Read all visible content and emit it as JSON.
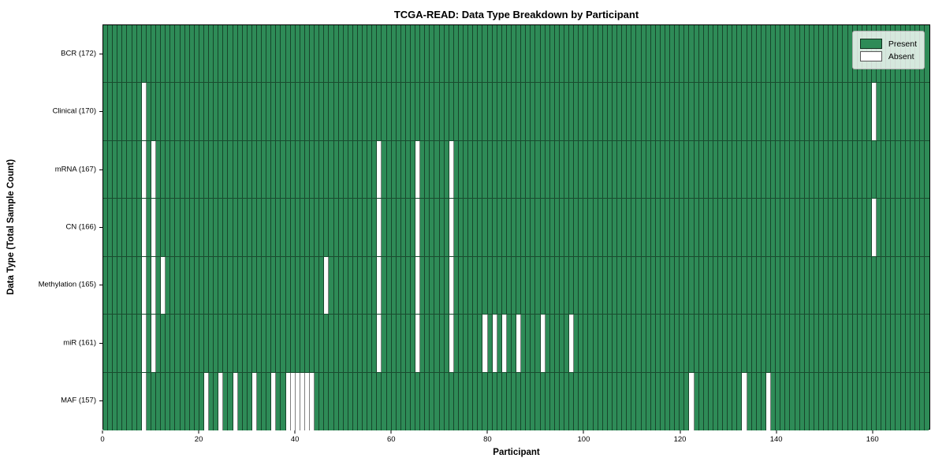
{
  "title": "TCGA-READ: Data Type Breakdown by Participant",
  "chart_data": {
    "type": "heatmap",
    "title": "TCGA-READ: Data Type Breakdown by Participant",
    "xlabel": "Participant",
    "ylabel": "Data Type (Total Sample Count)",
    "x_ticks": [
      0,
      20,
      40,
      60,
      80,
      100,
      120,
      140,
      160
    ],
    "xlim": [
      0,
      172
    ],
    "n_participants": 172,
    "grid": "cell-borders",
    "legend_position": "upper right",
    "colors": {
      "present": "#2e8b57",
      "absent": "#ffffff"
    },
    "legend": [
      {
        "label": "Present",
        "color": "#2e8b57"
      },
      {
        "label": "Absent",
        "color": "#ffffff"
      }
    ],
    "rows": [
      {
        "label": "BCR (172)",
        "data_type": "BCR",
        "total_samples": 172,
        "absent_participants": []
      },
      {
        "label": "Clinical (170)",
        "data_type": "Clinical",
        "total_samples": 170,
        "absent_participants": [
          8,
          160
        ]
      },
      {
        "label": "mRNA (167)",
        "data_type": "mRNA",
        "total_samples": 167,
        "absent_participants": [
          8,
          10,
          57,
          65,
          72
        ]
      },
      {
        "label": "CN (166)",
        "data_type": "CN",
        "total_samples": 166,
        "absent_participants": [
          8,
          10,
          57,
          65,
          72,
          160
        ]
      },
      {
        "label": "Methylation (165)",
        "data_type": "Methylation",
        "total_samples": 165,
        "absent_participants": [
          8,
          10,
          12,
          46,
          57,
          65,
          72
        ]
      },
      {
        "label": "miR (161)",
        "data_type": "miR",
        "total_samples": 161,
        "absent_participants": [
          8,
          10,
          57,
          65,
          72,
          79,
          81,
          83,
          86,
          91,
          97
        ]
      },
      {
        "label": "MAF (157)",
        "data_type": "MAF",
        "total_samples": 157,
        "absent_participants": [
          8,
          21,
          24,
          27,
          31,
          35,
          38,
          39,
          40,
          41,
          42,
          43,
          122,
          133,
          138
        ]
      }
    ]
  }
}
